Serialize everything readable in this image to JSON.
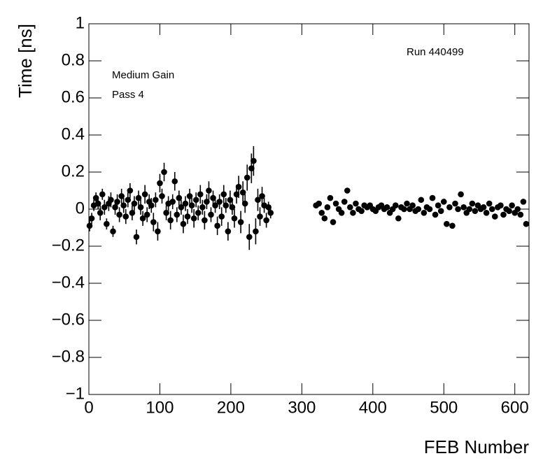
{
  "chart_data": {
    "type": "scatter",
    "x_label": "FEB Number",
    "y_label": "Time [ns]",
    "annotations": [
      "Run 440499",
      "Medium Gain",
      "Pass 4"
    ],
    "color": "#000000",
    "xlim": [
      0,
      620
    ],
    "ylim": [
      -1,
      1
    ],
    "xticks": [
      0,
      100,
      200,
      300,
      400,
      500,
      600
    ],
    "yticks": [
      {
        "value": -1,
        "label": "−1"
      },
      {
        "value": -0.8,
        "label": "−0.8"
      },
      {
        "value": -0.6,
        "label": "−0.6"
      },
      {
        "value": -0.4,
        "label": "−0.4"
      },
      {
        "value": -0.2,
        "label": "−0.2"
      },
      0,
      0.2,
      0.4,
      0.6,
      0.8,
      1
    ],
    "x": [
      1,
      4,
      7,
      10,
      13,
      16,
      19,
      22,
      25,
      28,
      31,
      34,
      37,
      40,
      43,
      46,
      49,
      52,
      55,
      58,
      61,
      64,
      67,
      70,
      73,
      76,
      79,
      82,
      85,
      88,
      91,
      94,
      97,
      100,
      103,
      106,
      109,
      112,
      115,
      118,
      121,
      124,
      127,
      130,
      133,
      136,
      139,
      142,
      145,
      148,
      151,
      154,
      157,
      160,
      163,
      166,
      169,
      172,
      175,
      178,
      181,
      184,
      187,
      190,
      193,
      196,
      199,
      202,
      205,
      208,
      211,
      214,
      217,
      220,
      223,
      226,
      229,
      232,
      235,
      238,
      241,
      244,
      247,
      250,
      253,
      256,
      320,
      324,
      328,
      332,
      336,
      340,
      344,
      348,
      352,
      356,
      360,
      364,
      368,
      372,
      376,
      380,
      384,
      388,
      392,
      396,
      400,
      404,
      408,
      412,
      416,
      420,
      424,
      428,
      432,
      436,
      440,
      444,
      448,
      452,
      456,
      460,
      464,
      468,
      472,
      476,
      480,
      484,
      488,
      492,
      496,
      500,
      504,
      508,
      512,
      516,
      520,
      524,
      528,
      532,
      536,
      540,
      544,
      548,
      552,
      556,
      560,
      564,
      568,
      572,
      576,
      580,
      584,
      588,
      592,
      596,
      600,
      604,
      608,
      612,
      616
    ],
    "values": [
      -0.09,
      -0.05,
      0.02,
      0.06,
      0.03,
      -0.02,
      0.08,
      0.01,
      -0.08,
      0.03,
      0.05,
      -0.12,
      0.01,
      0.04,
      -0.03,
      0.07,
      0.02,
      -0.04,
      0.05,
      0.1,
      -0.02,
      0.03,
      -0.15,
      0.06,
      0.01,
      -0.05,
      0.08,
      -0.03,
      0.04,
      0.02,
      -0.07,
      0.05,
      -0.12,
      0.14,
      0.07,
      0.2,
      -0.02,
      0.03,
      -0.06,
      0.04,
      0.15,
      -0.03,
      0.06,
      0.01,
      -0.08,
      0.03,
      -0.04,
      0.07,
      0.02,
      -0.05,
      0.05,
      -0.02,
      0.08,
      0.01,
      -0.06,
      0.04,
      0.1,
      -0.03,
      0.06,
      0.02,
      -0.09,
      0.04,
      -0.04,
      0.08,
      0.02,
      -0.12,
      0.05,
      0.01,
      -0.05,
      0.08,
      0.12,
      -0.07,
      0.09,
      0.03,
      0.17,
      -0.15,
      0.22,
      0.26,
      -0.12,
      0.05,
      -0.04,
      0.07,
      0.02,
      -0.06,
      0.01,
      -0.02,
      0.02,
      0.03,
      -0.02,
      -0.05,
      0.01,
      0.06,
      -0.07,
      0.03,
      0,
      -0.02,
      0.04,
      0.1,
      0.01,
      -0.02,
      0.03,
      0,
      -0.01,
      0.02,
      0.01,
      0.02,
      0,
      -0.01,
      0.01,
      0.02,
      0,
      0.01,
      -0.02,
      0,
      0.02,
      -0.05,
      0.01,
      0,
      0.03,
      0,
      0.02,
      -0.01,
      0,
      0.05,
      -0.02,
      0.01,
      0,
      0.06,
      -0.03,
      0.02,
      -0.01,
      0.04,
      -0.08,
      0.01,
      -0.09,
      0.03,
      0,
      0.08,
      0.01,
      -0.02,
      0,
      0.03,
      -0.01,
      0.02,
      0,
      0.01,
      -0.02,
      0.03,
      0,
      -0.04,
      0.01,
      0.02,
      -0.03,
      0,
      -0.01,
      0.02,
      -0.02,
      0,
      -0.03,
      0.04,
      -0.08
    ],
    "errors": [
      0.03,
      0.03,
      0.03,
      0.03,
      0.03,
      0.04,
      0.03,
      0.04,
      0.03,
      0.04,
      0.04,
      0.03,
      0.04,
      0.04,
      0.04,
      0.04,
      0.04,
      0.04,
      0.04,
      0.04,
      0.04,
      0.04,
      0.04,
      0.04,
      0.04,
      0.04,
      0.05,
      0.04,
      0.04,
      0.04,
      0.05,
      0.04,
      0.05,
      0.05,
      0.04,
      0.05,
      0.04,
      0.04,
      0.05,
      0.04,
      0.05,
      0.04,
      0.04,
      0.04,
      0.05,
      0.04,
      0.04,
      0.04,
      0.04,
      0.05,
      0.04,
      0.04,
      0.05,
      0.04,
      0.05,
      0.04,
      0.05,
      0.04,
      0.04,
      0.04,
      0.05,
      0.04,
      0.05,
      0.05,
      0.04,
      0.05,
      0.05,
      0.04,
      0.05,
      0.05,
      0.06,
      0.06,
      0.06,
      0.05,
      0.07,
      0.07,
      0.08,
      0.08,
      0.07,
      0.06,
      0.05,
      0.05,
      0.04,
      0.04,
      0.03,
      0.03,
      0.015,
      0.015,
      0.015,
      0.015,
      0.015,
      0.015,
      0.015,
      0.015,
      0.015,
      0.015,
      0.015,
      0.015,
      0.015,
      0.015,
      0.015,
      0.015,
      0.015,
      0.015,
      0.015,
      0.015,
      0.015,
      0.015,
      0.015,
      0.015,
      0.015,
      0.015,
      0.015,
      0.015,
      0.015,
      0.015,
      0.015,
      0.015,
      0.015,
      0.015,
      0.015,
      0.015,
      0.015,
      0.015,
      0.015,
      0.015,
      0.015,
      0.015,
      0.015,
      0.015,
      0.015,
      0.015,
      0.015,
      0.015,
      0.015,
      0.015,
      0.015,
      0.015,
      0.015,
      0.015,
      0.015,
      0.015,
      0.015,
      0.015,
      0.015,
      0.015,
      0.015,
      0.015,
      0.015,
      0.015,
      0.015,
      0.015,
      0.015,
      0.015,
      0.015,
      0.015,
      0.015,
      0.015,
      0.015,
      0.015,
      0.015
    ]
  }
}
